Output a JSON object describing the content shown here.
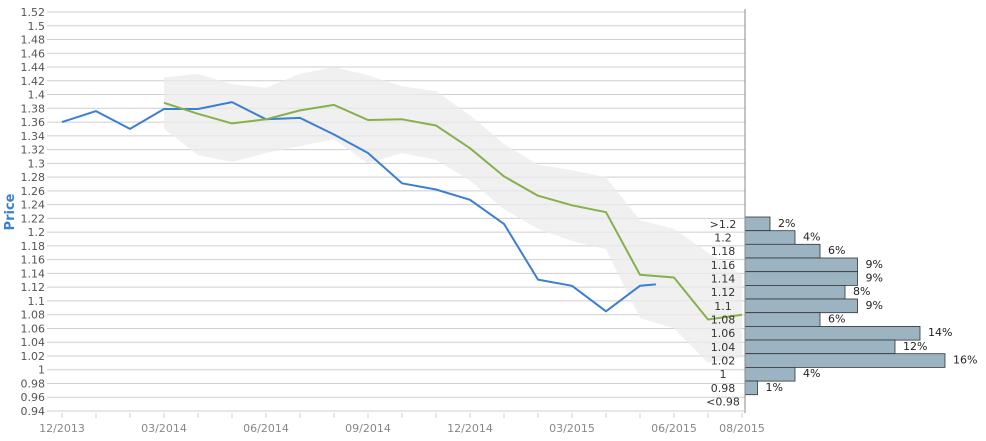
{
  "chart_data": {
    "type": "line",
    "ylabel": "Price",
    "ylim": [
      0.94,
      1.52
    ],
    "y_ticks": [
      "1.52",
      "1.5",
      "1.48",
      "1.46",
      "1.44",
      "1.42",
      "1.4",
      "1.38",
      "1.36",
      "1.34",
      "1.32",
      "1.3",
      "1.28",
      "1.26",
      "1.24",
      "1.22",
      "1.2",
      "1.18",
      "1.16",
      "1.14",
      "1.12",
      "1.1",
      "1.08",
      "1.06",
      "1.04",
      "1.02",
      "1",
      "0.98",
      "0.96",
      "0.94"
    ],
    "x_tick_labels": [
      "12/2013",
      "03/2014",
      "06/2014",
      "09/2014",
      "12/2014",
      "03/2015",
      "06/2015",
      "08/2015"
    ],
    "grid": true,
    "series": [
      {
        "color": "#3b7fd0",
        "points": [
          [
            "2013-12",
            1.36
          ],
          [
            "2014-01",
            1.376
          ],
          [
            "2014-02",
            1.35
          ],
          [
            "2014-03",
            1.379
          ],
          [
            "2014-04",
            1.379
          ],
          [
            "2014-05",
            1.389
          ],
          [
            "2014-06",
            1.364
          ],
          [
            "2014-07",
            1.366
          ],
          [
            "2014-08",
            1.342
          ],
          [
            "2014-09",
            1.315
          ],
          [
            "2014-10",
            1.271
          ],
          [
            "2014-11",
            1.262
          ],
          [
            "2014-12",
            1.247
          ],
          [
            "2015-01",
            1.212
          ],
          [
            "2015-02",
            1.131
          ],
          [
            "2015-03",
            1.122
          ],
          [
            "2015-04",
            1.085
          ],
          [
            "2015-05",
            1.122
          ],
          [
            "2015-05-15",
            1.124
          ]
        ]
      },
      {
        "color": "#86b04a",
        "points": [
          [
            "2014-03",
            1.388
          ],
          [
            "2014-04",
            1.372
          ],
          [
            "2014-05",
            1.358
          ],
          [
            "2014-06",
            1.364
          ],
          [
            "2014-07",
            1.377
          ],
          [
            "2014-08",
            1.385
          ],
          [
            "2014-09",
            1.363
          ],
          [
            "2014-10",
            1.364
          ],
          [
            "2014-11",
            1.355
          ],
          [
            "2014-12",
            1.322
          ],
          [
            "2015-01",
            1.281
          ],
          [
            "2015-02",
            1.253
          ],
          [
            "2015-03",
            1.239
          ],
          [
            "2015-04",
            1.229
          ],
          [
            "2015-05",
            1.138
          ],
          [
            "2015-06",
            1.134
          ],
          [
            "2015-07",
            1.073
          ],
          [
            "2015-08",
            1.08
          ]
        ]
      }
    ],
    "band": {
      "color": "#ebebeb",
      "upper": [
        [
          "2014-03",
          1.425
        ],
        [
          "2014-04",
          1.43
        ],
        [
          "2014-05",
          1.415
        ],
        [
          "2014-06",
          1.41
        ],
        [
          "2014-07",
          1.43
        ],
        [
          "2014-08",
          1.44
        ],
        [
          "2014-09",
          1.428
        ],
        [
          "2014-10",
          1.412
        ],
        [
          "2014-11",
          1.405
        ],
        [
          "2014-12",
          1.37
        ],
        [
          "2015-01",
          1.328
        ],
        [
          "2015-02",
          1.298
        ],
        [
          "2015-03",
          1.29
        ],
        [
          "2015-04",
          1.28
        ],
        [
          "2015-05",
          1.217
        ],
        [
          "2015-06",
          1.205
        ],
        [
          "2015-07",
          1.17
        ],
        [
          "2015-08",
          1.138
        ]
      ],
      "lower": [
        [
          "2014-03",
          1.35
        ],
        [
          "2014-04",
          1.312
        ],
        [
          "2014-05",
          1.302
        ],
        [
          "2014-06",
          1.315
        ],
        [
          "2014-07",
          1.325
        ],
        [
          "2014-08",
          1.335
        ],
        [
          "2014-09",
          1.3
        ],
        [
          "2014-10",
          1.315
        ],
        [
          "2014-11",
          1.305
        ],
        [
          "2014-12",
          1.275
        ],
        [
          "2015-01",
          1.233
        ],
        [
          "2015-02",
          1.205
        ],
        [
          "2015-03",
          1.187
        ],
        [
          "2015-04",
          1.175
        ],
        [
          "2015-05",
          1.075
        ],
        [
          "2015-06",
          1.06
        ],
        [
          "2015-07",
          1.01
        ],
        [
          "2015-08",
          1.018
        ]
      ]
    },
    "histogram": {
      "color": "#9cb3c2",
      "bins": [
        {
          "label": ">1.2",
          "value": 2,
          "text": "2%"
        },
        {
          "label": "1.2",
          "value": 4,
          "text": "4%"
        },
        {
          "label": "1.18",
          "value": 6,
          "text": "6%"
        },
        {
          "label": "1.16",
          "value": 9,
          "text": "9%"
        },
        {
          "label": "1.14",
          "value": 9,
          "text": "9%"
        },
        {
          "label": "1.12",
          "value": 8,
          "text": "8%"
        },
        {
          "label": "1.1",
          "value": 9,
          "text": "9%"
        },
        {
          "label": "1.08",
          "value": 6,
          "text": "6%"
        },
        {
          "label": "1.06",
          "value": 14,
          "text": "14%"
        },
        {
          "label": "1.04",
          "value": 12,
          "text": "12%"
        },
        {
          "label": "1.02",
          "value": 16,
          "text": "16%"
        },
        {
          "label": "1",
          "value": 4,
          "text": "4%"
        },
        {
          "label": "0.98",
          "value": 1,
          "text": "1%"
        },
        {
          "label": "<0.98",
          "value": 0,
          "text": ""
        }
      ]
    }
  }
}
